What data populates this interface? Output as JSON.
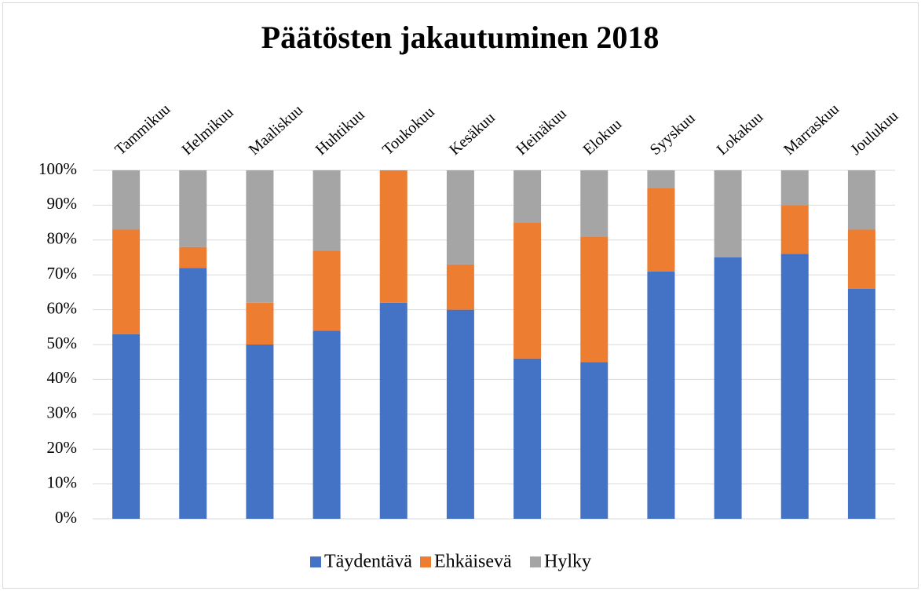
{
  "chart_data": {
    "type": "stacked_bar",
    "title": "Päätösten jakautuminen 2018",
    "categories": [
      "Tammikuu",
      "Helmikuu",
      "Maaliskuu",
      "Huhtikuu",
      "Toukokuu",
      "Kesäkuu",
      "Heinäkuu",
      "Elokuu",
      "Syyskuu",
      "Lokakuu",
      "Marraskuu",
      "Joulukuu"
    ],
    "series": [
      {
        "name": "Täydentävä",
        "color": "#4472c4",
        "values": [
          53,
          72,
          50,
          54,
          62,
          60,
          46,
          45,
          71,
          75,
          76,
          66
        ]
      },
      {
        "name": "Ehkäisevä",
        "color": "#ed7d31",
        "values": [
          30,
          6,
          12,
          23,
          38,
          13,
          39,
          36,
          24,
          0,
          14,
          17
        ]
      },
      {
        "name": "Hylky",
        "color": "#a5a5a5",
        "values": [
          17,
          22,
          38,
          23,
          0,
          27,
          15,
          19,
          5,
          25,
          10,
          17
        ]
      }
    ],
    "ylim": [
      0,
      100
    ],
    "yticks": [
      {
        "value": 0,
        "label": "0%"
      },
      {
        "value": 10,
        "label": "10%"
      },
      {
        "value": 20,
        "label": "20%"
      },
      {
        "value": 30,
        "label": "30%"
      },
      {
        "value": 40,
        "label": "40%"
      },
      {
        "value": 50,
        "label": "50%"
      },
      {
        "value": 60,
        "label": "60%"
      },
      {
        "value": 70,
        "label": "70%"
      },
      {
        "value": 80,
        "label": "80%"
      },
      {
        "value": 90,
        "label": "90%"
      },
      {
        "value": 100,
        "label": "100%"
      }
    ],
    "grid": true,
    "legend": "bottom"
  }
}
